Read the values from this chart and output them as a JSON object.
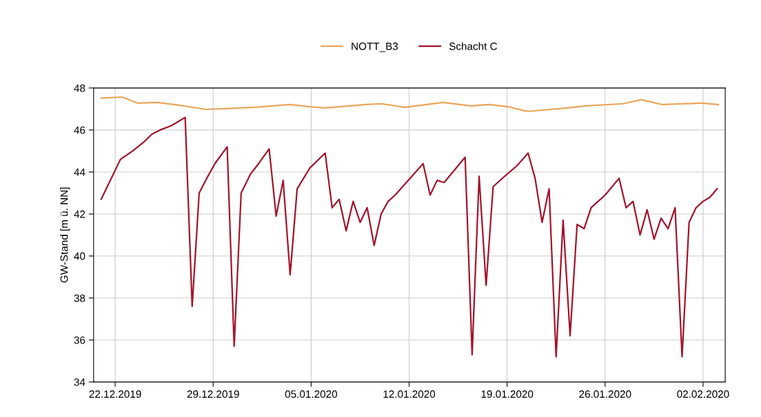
{
  "chart_data": {
    "type": "line",
    "ylabel": "GW-Stand [m ü. NN]",
    "xlim": [
      "2019-12-20T11:00",
      "2020-02-03T14:00"
    ],
    "xticks": [
      {
        "value": "2019-12-22",
        "label": "22.12.2019"
      },
      {
        "value": "2019-12-29",
        "label": "29.12.2019"
      },
      {
        "value": "2020-01-05",
        "label": "05.01.2020"
      },
      {
        "value": "2020-01-12",
        "label": "12.01.2020"
      },
      {
        "value": "2020-01-19",
        "label": "19.01.2020"
      },
      {
        "value": "2020-01-26",
        "label": "26.01.2020"
      },
      {
        "value": "2020-02-02",
        "label": "02.02.2020"
      }
    ],
    "ylim": [
      34,
      48
    ],
    "yticks": [
      34,
      36,
      38,
      40,
      42,
      44,
      46,
      48
    ],
    "grid": true,
    "legend": "top",
    "marker": "none",
    "line_style": "solid",
    "series": [
      {
        "name": "NOTT_B3",
        "color": "#e9a65a",
        "x": [
          "2019-12-21T00:00",
          "2019-12-22T12:00",
          "2019-12-23T14:00",
          "2019-12-25T00:00",
          "2019-12-26T14:00",
          "2019-12-28T12:00",
          "2019-12-29T22:00",
          "2020-01-01T00:00",
          "2020-01-03T12:00",
          "2020-01-04T22:00",
          "2020-01-05T22:00",
          "2020-01-08T22:00",
          "2020-01-10T00:00",
          "2020-01-11T17:00",
          "2020-01-14T10:00",
          "2020-01-16T10:00",
          "2020-01-17T17:00",
          "2020-01-19T02:00",
          "2020-01-20T05:00",
          "2020-01-20T14:00",
          "2020-01-23T07:00",
          "2020-01-24T14:00",
          "2020-01-27T07:00",
          "2020-01-28T14:00",
          "2020-01-30T02:00",
          "2020-02-01T22:00",
          "2020-02-03T02:00"
        ],
        "values": [
          47.52,
          47.57,
          47.28,
          47.31,
          47.18,
          46.98,
          47.02,
          47.08,
          47.21,
          47.11,
          47.05,
          47.21,
          47.25,
          47.08,
          47.31,
          47.15,
          47.21,
          47.11,
          46.92,
          46.89,
          47.05,
          47.15,
          47.25,
          47.44,
          47.21,
          47.28,
          47.21
        ]
      },
      {
        "name": "Schacht C",
        "color": "#a3142a",
        "x": [
          "2019-12-21T00:00",
          "2019-12-22T09:00",
          "2019-12-23T06:00",
          "2019-12-24T00:00",
          "2019-12-24T15:00",
          "2019-12-25T05:00",
          "2019-12-26T00:00",
          "2019-12-27T00:00",
          "2019-12-27T12:00",
          "2019-12-28T00:00",
          "2019-12-28T13:00",
          "2019-12-29T03:00",
          "2019-12-30T00:00",
          "2019-12-30T12:00",
          "2019-12-31T00:00",
          "2019-12-31T16:00",
          "2020-01-01T06:00",
          "2020-01-02T00:00",
          "2020-01-02T12:00",
          "2020-01-03T00:00",
          "2020-01-03T12:00",
          "2020-01-04T00:00",
          "2020-01-04T22:00",
          "2020-01-06T00:00",
          "2020-01-06T12:00",
          "2020-01-07T00:00",
          "2020-01-07T12:00",
          "2020-01-08T00:00",
          "2020-01-08T12:00",
          "2020-01-09T00:00",
          "2020-01-09T12:00",
          "2020-01-10T00:00",
          "2020-01-10T12:00",
          "2020-01-11T00:00",
          "2020-01-13T00:00",
          "2020-01-13T12:00",
          "2020-01-14T00:00",
          "2020-01-14T12:00",
          "2020-01-15T00:00",
          "2020-01-15T12:00",
          "2020-01-16T00:00",
          "2020-01-16T12:00",
          "2020-01-17T00:00",
          "2020-01-17T12:00",
          "2020-01-18T00:00",
          "2020-01-18T20:00",
          "2020-01-19T17:00",
          "2020-01-20T12:00",
          "2020-01-21T00:00",
          "2020-01-21T12:00",
          "2020-01-22T00:00",
          "2020-01-22T12:00",
          "2020-01-23T00:00",
          "2020-01-23T12:00",
          "2020-01-24T00:00",
          "2020-01-24T12:00",
          "2020-01-25T00:00",
          "2020-01-25T12:00",
          "2020-01-26T00:00",
          "2020-01-27T00:00",
          "2020-01-27T12:00",
          "2020-01-28T00:00",
          "2020-01-28T12:00",
          "2020-01-29T00:00",
          "2020-01-29T12:00",
          "2020-01-30T00:00",
          "2020-01-30T12:00",
          "2020-01-31T00:00",
          "2020-01-31T12:00",
          "2020-02-01T00:00",
          "2020-02-01T12:00",
          "2020-02-02T00:00",
          "2020-02-02T12:00",
          "2020-02-03T00:00"
        ],
        "values": [
          42.7,
          44.6,
          45.0,
          45.4,
          45.8,
          46.0,
          46.2,
          46.6,
          37.6,
          43.0,
          43.7,
          44.4,
          45.2,
          35.7,
          43.0,
          43.9,
          44.4,
          45.1,
          41.9,
          43.6,
          39.1,
          43.2,
          44.2,
          44.9,
          42.3,
          42.7,
          41.2,
          42.6,
          41.6,
          42.3,
          40.5,
          42.0,
          42.6,
          42.9,
          44.4,
          42.9,
          43.6,
          43.5,
          43.9,
          44.3,
          44.7,
          35.3,
          43.8,
          38.6,
          43.3,
          43.8,
          44.3,
          44.9,
          43.7,
          41.6,
          43.2,
          35.2,
          41.7,
          36.2,
          41.5,
          41.3,
          42.3,
          42.6,
          42.9,
          43.7,
          42.3,
          42.6,
          41.0,
          42.2,
          40.8,
          41.8,
          41.3,
          42.3,
          35.2,
          41.6,
          42.3,
          42.6,
          42.8,
          43.2
        ]
      }
    ]
  }
}
